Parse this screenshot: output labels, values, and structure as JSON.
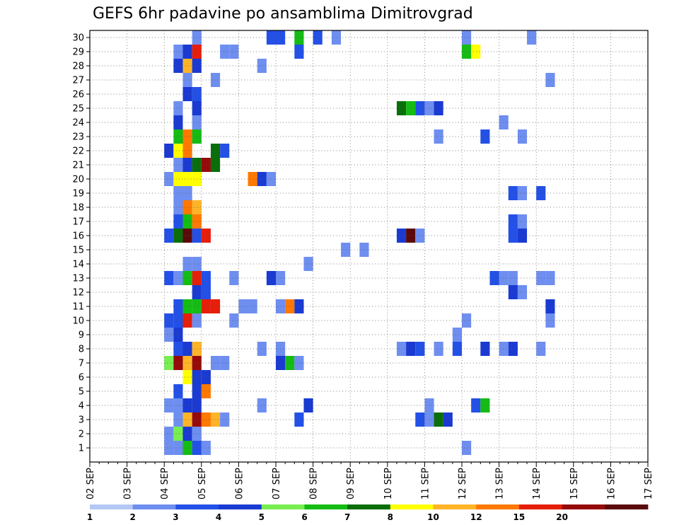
{
  "chart_data": {
    "type": "heatmap",
    "title": "GEFS 6hr padavine po ansamblima Dimitrovgrad",
    "xlabel": "",
    "ylabel": "",
    "x_ticks": [
      "02 SEP",
      "03 SEP",
      "04 SEP",
      "05 SEP",
      "06 SEP",
      "07 SEP",
      "08 SEP",
      "09 SEP",
      "10 SEP",
      "11 SEP",
      "12 SEP",
      "13 SEP",
      "14 SEP",
      "15 SEP",
      "16 SEP",
      "17 SEP"
    ],
    "y_ticks": [
      "1",
      "2",
      "3",
      "4",
      "5",
      "6",
      "7",
      "8",
      "9",
      "10",
      "11",
      "12",
      "13",
      "14",
      "15",
      "16",
      "17",
      "18",
      "19",
      "20",
      "21",
      "22",
      "23",
      "24",
      "25",
      "26",
      "27",
      "28",
      "29",
      "30"
    ],
    "time_step_hours": 6,
    "grid": true,
    "colorbar": {
      "position": "bottom",
      "labels": [
        "1",
        "2",
        "3",
        "4",
        "5",
        "6",
        "7",
        "8",
        "10",
        "12",
        "15",
        "20"
      ],
      "colors": [
        "#b4c8f5",
        "#6e8ef0",
        "#2350e6",
        "#1a3ad2",
        "#78ee50",
        "#14bc14",
        "#0a6e0a",
        "#ffff00",
        "#ffb428",
        "#ff7800",
        "#e61e0a",
        "#960a0a",
        "#5a0a0a"
      ]
    },
    "cells": [
      [
        1,
        8,
        1
      ],
      [
        1,
        9,
        1
      ],
      [
        1,
        10,
        5
      ],
      [
        1,
        11,
        2
      ],
      [
        1,
        12,
        1
      ],
      [
        1,
        40,
        1
      ],
      [
        2,
        8,
        1
      ],
      [
        2,
        9,
        4
      ],
      [
        2,
        10,
        3
      ],
      [
        2,
        11,
        1
      ],
      [
        3,
        9,
        1
      ],
      [
        3,
        10,
        8
      ],
      [
        3,
        11,
        11
      ],
      [
        3,
        12,
        9
      ],
      [
        3,
        13,
        8
      ],
      [
        3,
        14,
        1
      ],
      [
        3,
        22,
        2
      ],
      [
        3,
        35,
        2
      ],
      [
        3,
        36,
        1
      ],
      [
        3,
        37,
        6
      ],
      [
        3,
        38,
        3
      ],
      [
        4,
        8,
        1
      ],
      [
        4,
        9,
        1
      ],
      [
        4,
        10,
        3
      ],
      [
        4,
        11,
        3
      ],
      [
        4,
        18,
        1
      ],
      [
        4,
        23,
        3
      ],
      [
        4,
        36,
        1
      ],
      [
        4,
        41,
        2
      ],
      [
        4,
        42,
        5
      ],
      [
        5,
        9,
        2
      ],
      [
        5,
        11,
        3
      ],
      [
        5,
        12,
        9
      ],
      [
        6,
        10,
        7
      ],
      [
        6,
        11,
        3
      ],
      [
        6,
        12,
        3
      ],
      [
        7,
        8,
        4
      ],
      [
        7,
        9,
        11
      ],
      [
        7,
        10,
        8
      ],
      [
        7,
        11,
        11
      ],
      [
        7,
        13,
        1
      ],
      [
        7,
        14,
        1
      ],
      [
        7,
        20,
        3
      ],
      [
        7,
        21,
        5
      ],
      [
        7,
        22,
        1
      ],
      [
        8,
        9,
        2
      ],
      [
        8,
        10,
        3
      ],
      [
        8,
        11,
        8
      ],
      [
        8,
        18,
        1
      ],
      [
        8,
        20,
        1
      ],
      [
        8,
        33,
        1
      ],
      [
        8,
        34,
        3
      ],
      [
        8,
        35,
        2
      ],
      [
        8,
        37,
        1
      ],
      [
        8,
        39,
        2
      ],
      [
        8,
        42,
        3
      ],
      [
        8,
        44,
        1
      ],
      [
        8,
        45,
        3
      ],
      [
        8,
        48,
        1
      ],
      [
        9,
        8,
        1
      ],
      [
        9,
        9,
        3
      ],
      [
        9,
        39,
        1
      ],
      [
        10,
        8,
        2
      ],
      [
        10,
        9,
        2
      ],
      [
        10,
        10,
        10
      ],
      [
        10,
        11,
        1
      ],
      [
        10,
        15,
        1
      ],
      [
        10,
        40,
        1
      ],
      [
        10,
        49,
        1
      ],
      [
        11,
        9,
        2
      ],
      [
        11,
        10,
        5
      ],
      [
        11,
        11,
        5
      ],
      [
        11,
        12,
        10
      ],
      [
        11,
        13,
        10
      ],
      [
        11,
        16,
        1
      ],
      [
        11,
        17,
        1
      ],
      [
        11,
        20,
        1
      ],
      [
        11,
        21,
        9
      ],
      [
        11,
        22,
        3
      ],
      [
        11,
        49,
        3
      ],
      [
        12,
        11,
        3
      ],
      [
        12,
        12,
        2
      ],
      [
        12,
        45,
        3
      ],
      [
        12,
        46,
        1
      ],
      [
        13,
        8,
        2
      ],
      [
        13,
        9,
        1
      ],
      [
        13,
        10,
        5
      ],
      [
        13,
        11,
        10
      ],
      [
        13,
        12,
        2
      ],
      [
        13,
        15,
        1
      ],
      [
        13,
        19,
        3
      ],
      [
        13,
        20,
        1
      ],
      [
        13,
        43,
        2
      ],
      [
        13,
        44,
        1
      ],
      [
        13,
        45,
        1
      ],
      [
        13,
        48,
        1
      ],
      [
        13,
        49,
        1
      ],
      [
        14,
        10,
        1
      ],
      [
        14,
        11,
        1
      ],
      [
        14,
        23,
        1
      ],
      [
        15,
        27,
        1
      ],
      [
        15,
        29,
        1
      ],
      [
        16,
        8,
        2
      ],
      [
        16,
        9,
        6
      ],
      [
        16,
        10,
        12
      ],
      [
        16,
        11,
        2
      ],
      [
        16,
        12,
        10
      ],
      [
        16,
        33,
        3
      ],
      [
        16,
        34,
        12
      ],
      [
        16,
        35,
        1
      ],
      [
        16,
        45,
        2
      ],
      [
        16,
        46,
        3
      ],
      [
        17,
        9,
        2
      ],
      [
        17,
        10,
        5
      ],
      [
        17,
        11,
        9
      ],
      [
        17,
        45,
        2
      ],
      [
        17,
        46,
        1
      ],
      [
        18,
        9,
        1
      ],
      [
        18,
        10,
        9
      ],
      [
        18,
        11,
        8
      ],
      [
        19,
        9,
        1
      ],
      [
        19,
        10,
        1
      ],
      [
        19,
        45,
        2
      ],
      [
        19,
        46,
        1
      ],
      [
        19,
        48,
        2
      ],
      [
        20,
        8,
        1
      ],
      [
        20,
        9,
        7
      ],
      [
        20,
        10,
        7
      ],
      [
        20,
        11,
        7
      ],
      [
        20,
        17,
        9
      ],
      [
        20,
        18,
        3
      ],
      [
        20,
        19,
        1
      ],
      [
        21,
        9,
        1
      ],
      [
        21,
        10,
        3
      ],
      [
        21,
        11,
        6
      ],
      [
        21,
        12,
        11
      ],
      [
        21,
        13,
        6
      ],
      [
        22,
        8,
        3
      ],
      [
        22,
        9,
        7
      ],
      [
        22,
        10,
        9
      ],
      [
        22,
        13,
        6
      ],
      [
        22,
        14,
        2
      ],
      [
        23,
        9,
        5
      ],
      [
        23,
        10,
        9
      ],
      [
        23,
        11,
        5
      ],
      [
        23,
        37,
        1
      ],
      [
        23,
        42,
        2
      ],
      [
        23,
        46,
        1
      ],
      [
        24,
        9,
        3
      ],
      [
        24,
        11,
        1
      ],
      [
        24,
        44,
        1
      ],
      [
        25,
        9,
        1
      ],
      [
        25,
        11,
        3
      ],
      [
        25,
        33,
        6
      ],
      [
        25,
        34,
        5
      ],
      [
        25,
        35,
        2
      ],
      [
        25,
        36,
        1
      ],
      [
        25,
        37,
        3
      ],
      [
        26,
        10,
        3
      ],
      [
        26,
        11,
        2
      ],
      [
        27,
        10,
        1
      ],
      [
        27,
        13,
        1
      ],
      [
        27,
        49,
        1
      ],
      [
        28,
        9,
        3
      ],
      [
        28,
        10,
        8
      ],
      [
        28,
        11,
        3
      ],
      [
        28,
        18,
        1
      ],
      [
        29,
        9,
        1
      ],
      [
        29,
        10,
        3
      ],
      [
        29,
        11,
        10
      ],
      [
        29,
        14,
        1
      ],
      [
        29,
        15,
        1
      ],
      [
        29,
        22,
        2
      ],
      [
        29,
        40,
        5
      ],
      [
        29,
        41,
        7
      ],
      [
        30,
        11,
        1
      ],
      [
        30,
        19,
        2
      ],
      [
        30,
        20,
        2
      ],
      [
        30,
        22,
        5
      ],
      [
        30,
        24,
        2
      ],
      [
        30,
        26,
        1
      ],
      [
        30,
        40,
        1
      ],
      [
        30,
        47,
        1
      ]
    ]
  }
}
